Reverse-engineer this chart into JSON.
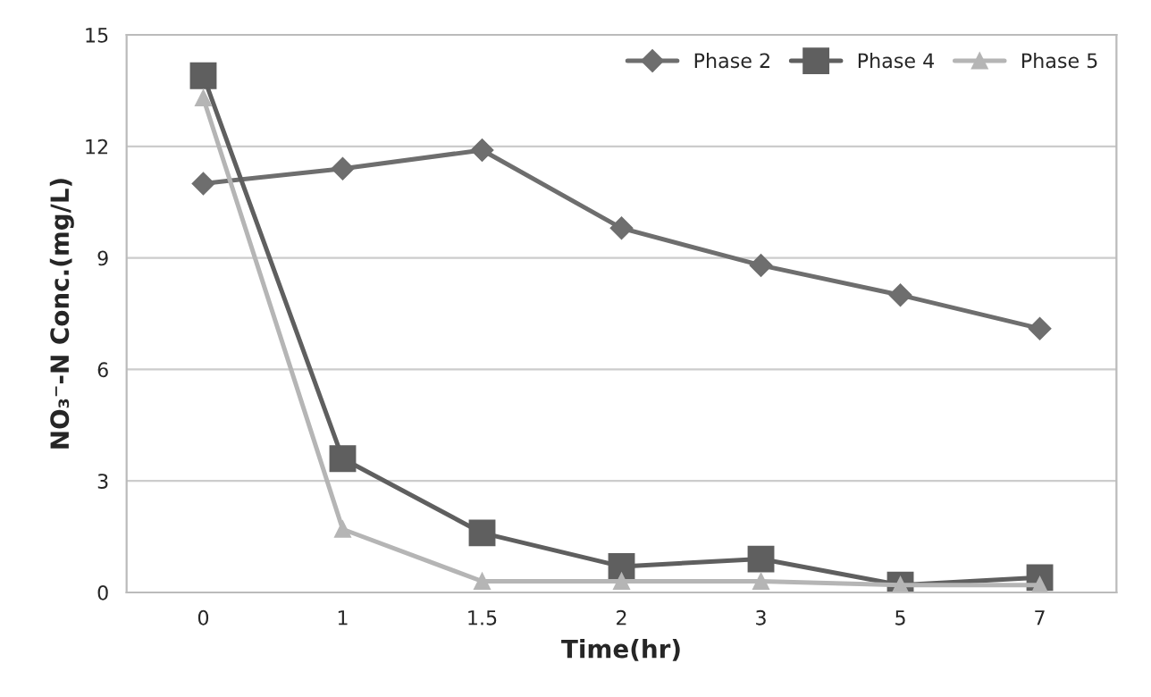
{
  "chart_data": {
    "type": "line",
    "xlabel": "Time(hr)",
    "ylabel": "NO₃⁻-N Conc.(mg/L)",
    "categories": [
      "0",
      "1",
      "1.5",
      "2",
      "3",
      "5",
      "7"
    ],
    "series": [
      {
        "name": "Phase 2",
        "color": "#6e6e6e",
        "marker": "diamond",
        "values": [
          11.0,
          11.4,
          11.9,
          9.8,
          8.8,
          8.0,
          7.1
        ]
      },
      {
        "name": "Phase 4",
        "color": "#5f5f5f",
        "marker": "square",
        "values": [
          13.9,
          3.6,
          1.6,
          0.7,
          0.9,
          0.2,
          0.4
        ]
      },
      {
        "name": "Phase 5",
        "color": "#b5b5b5",
        "marker": "triangle",
        "values": [
          13.3,
          1.7,
          0.3,
          0.3,
          0.3,
          0.2,
          0.2
        ]
      }
    ],
    "ylim": [
      0,
      15
    ],
    "yticks": [
      0,
      3,
      6,
      9,
      12,
      15
    ],
    "grid": "y",
    "legend": "top right",
    "line_style": "solid"
  }
}
